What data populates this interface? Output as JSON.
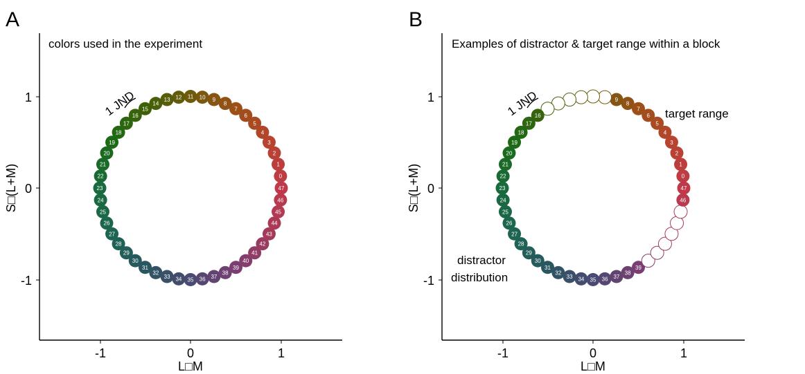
{
  "panels": [
    {
      "letter": "A",
      "title": "colors used in the experiment",
      "xlabel": "L□M",
      "ylabel": "S□(L+M)",
      "xticks": [
        "-1",
        "0",
        "1"
      ],
      "yticks": [
        "1",
        "0",
        "-1"
      ],
      "jnd_label": "1 JND",
      "annotations": []
    },
    {
      "letter": "B",
      "title": "Examples of distractor & target range within a block",
      "xlabel": "L□M",
      "ylabel": "S□(L+M)",
      "xticks": [
        "-1",
        "0",
        "1"
      ],
      "yticks": [
        "1",
        "0",
        "-1"
      ],
      "jnd_label": "1 JND",
      "annotations": [
        "target range",
        "distractor",
        "distribution"
      ]
    }
  ],
  "chart_data": [
    {
      "type": "scatter",
      "title": "colors used in the experiment",
      "xlabel": "L□M",
      "ylabel": "S□(L+M)",
      "xlim": [
        -1.6,
        1.6
      ],
      "ylim": [
        -1.65,
        1.45
      ],
      "grid": false,
      "points": {
        "radius_data": 1.0,
        "indices": [
          0,
          1,
          2,
          3,
          4,
          5,
          6,
          7,
          8,
          9,
          10,
          11,
          12,
          13,
          14,
          15,
          16,
          17,
          18,
          19,
          20,
          21,
          22,
          23,
          24,
          25,
          26,
          27,
          28,
          29,
          30,
          31,
          32,
          33,
          34,
          35,
          36,
          37,
          38,
          39,
          40,
          41,
          42,
          43,
          44,
          45,
          46,
          47
        ],
        "angles_deg": [
          7.5,
          15,
          22.5,
          30,
          37.5,
          45,
          52.5,
          60,
          67.5,
          75,
          82.5,
          90,
          97.5,
          105,
          112.5,
          120,
          127.5,
          135,
          142.5,
          150,
          157.5,
          165,
          172.5,
          180,
          187.5,
          195,
          202.5,
          210,
          217.5,
          225,
          232.5,
          240,
          247.5,
          255,
          262.5,
          270,
          277.5,
          285,
          292.5,
          300,
          307.5,
          315,
          322.5,
          330,
          337.5,
          345,
          352.5,
          0
        ],
        "filled": "all"
      }
    },
    {
      "type": "scatter",
      "title": "Examples of distractor & target range within a block",
      "xlabel": "L□M",
      "ylabel": "S□(L+M)",
      "xlim": [
        -1.6,
        1.6
      ],
      "ylim": [
        -1.65,
        1.45
      ],
      "grid": false,
      "filled_indices": [
        46,
        47,
        0,
        1,
        2,
        3,
        4,
        5,
        6,
        7,
        8,
        9,
        16,
        17,
        18,
        19,
        20,
        21,
        22,
        23,
        24,
        25,
        26,
        27,
        28,
        29,
        30,
        31,
        32,
        33,
        34,
        35,
        36,
        37,
        38,
        39
      ],
      "open_indices": [
        10,
        11,
        12,
        13,
        14,
        15,
        40,
        41,
        42,
        43,
        44,
        45
      ],
      "annotations": [
        "target range",
        "distractor distribution"
      ]
    }
  ],
  "colors": {
    "stops": [
      {
        "angle": 0,
        "hex": "#c0394a"
      },
      {
        "angle": 30,
        "hex": "#b8432e"
      },
      {
        "angle": 60,
        "hex": "#9c5018"
      },
      {
        "angle": 90,
        "hex": "#6e5a0a"
      },
      {
        "angle": 120,
        "hex": "#3e6108"
      },
      {
        "angle": 150,
        "hex": "#1d6a16"
      },
      {
        "angle": 180,
        "hex": "#196a3c"
      },
      {
        "angle": 210,
        "hex": "#1d6552"
      },
      {
        "angle": 240,
        "hex": "#2a5660"
      },
      {
        "angle": 270,
        "hex": "#4a4a72"
      },
      {
        "angle": 300,
        "hex": "#7a3e72"
      },
      {
        "angle": 330,
        "hex": "#a33a5a"
      },
      {
        "angle": 360,
        "hex": "#c0394a"
      }
    ],
    "axis": "#000000"
  }
}
